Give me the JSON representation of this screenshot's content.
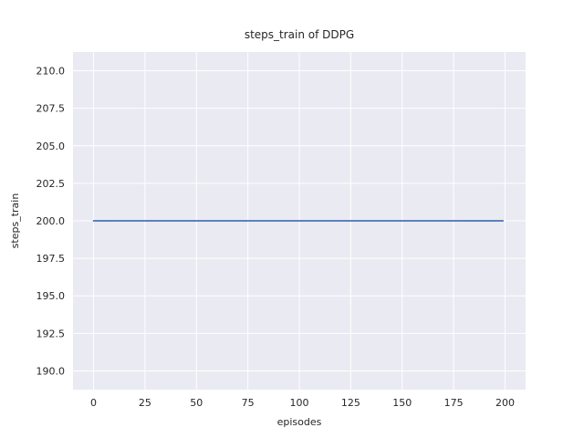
{
  "chart_data": {
    "type": "line",
    "title": "steps_train of DDPG",
    "xlabel": "episodes",
    "ylabel": "steps_train",
    "x_ticks": [
      0,
      25,
      50,
      75,
      100,
      125,
      150,
      175,
      200
    ],
    "x_tick_labels": [
      "0",
      "25",
      "50",
      "75",
      "100",
      "125",
      "150",
      "175",
      "200"
    ],
    "y_ticks": [
      190.0,
      192.5,
      195.0,
      197.5,
      200.0,
      202.5,
      205.0,
      207.5,
      210.0
    ],
    "y_tick_labels": [
      "190.0",
      "192.5",
      "195.0",
      "197.5",
      "200.0",
      "202.5",
      "205.0",
      "207.5",
      "210.0"
    ],
    "xlim": [
      -10,
      210
    ],
    "ylim": [
      188.75,
      211.25
    ],
    "grid": true,
    "legend": false,
    "style": "seaborn-darkgrid",
    "series": [
      {
        "name": "steps_train",
        "x": [
          0,
          199
        ],
        "y": [
          200,
          200
        ],
        "color": "#4c72b0",
        "description": "constant value 200 for all episodes 0-199"
      }
    ],
    "colors": {
      "panel_background": "#eaeaf2",
      "gridline": "#ffffff",
      "text": "#262626",
      "figure_background": "#ffffff"
    }
  }
}
